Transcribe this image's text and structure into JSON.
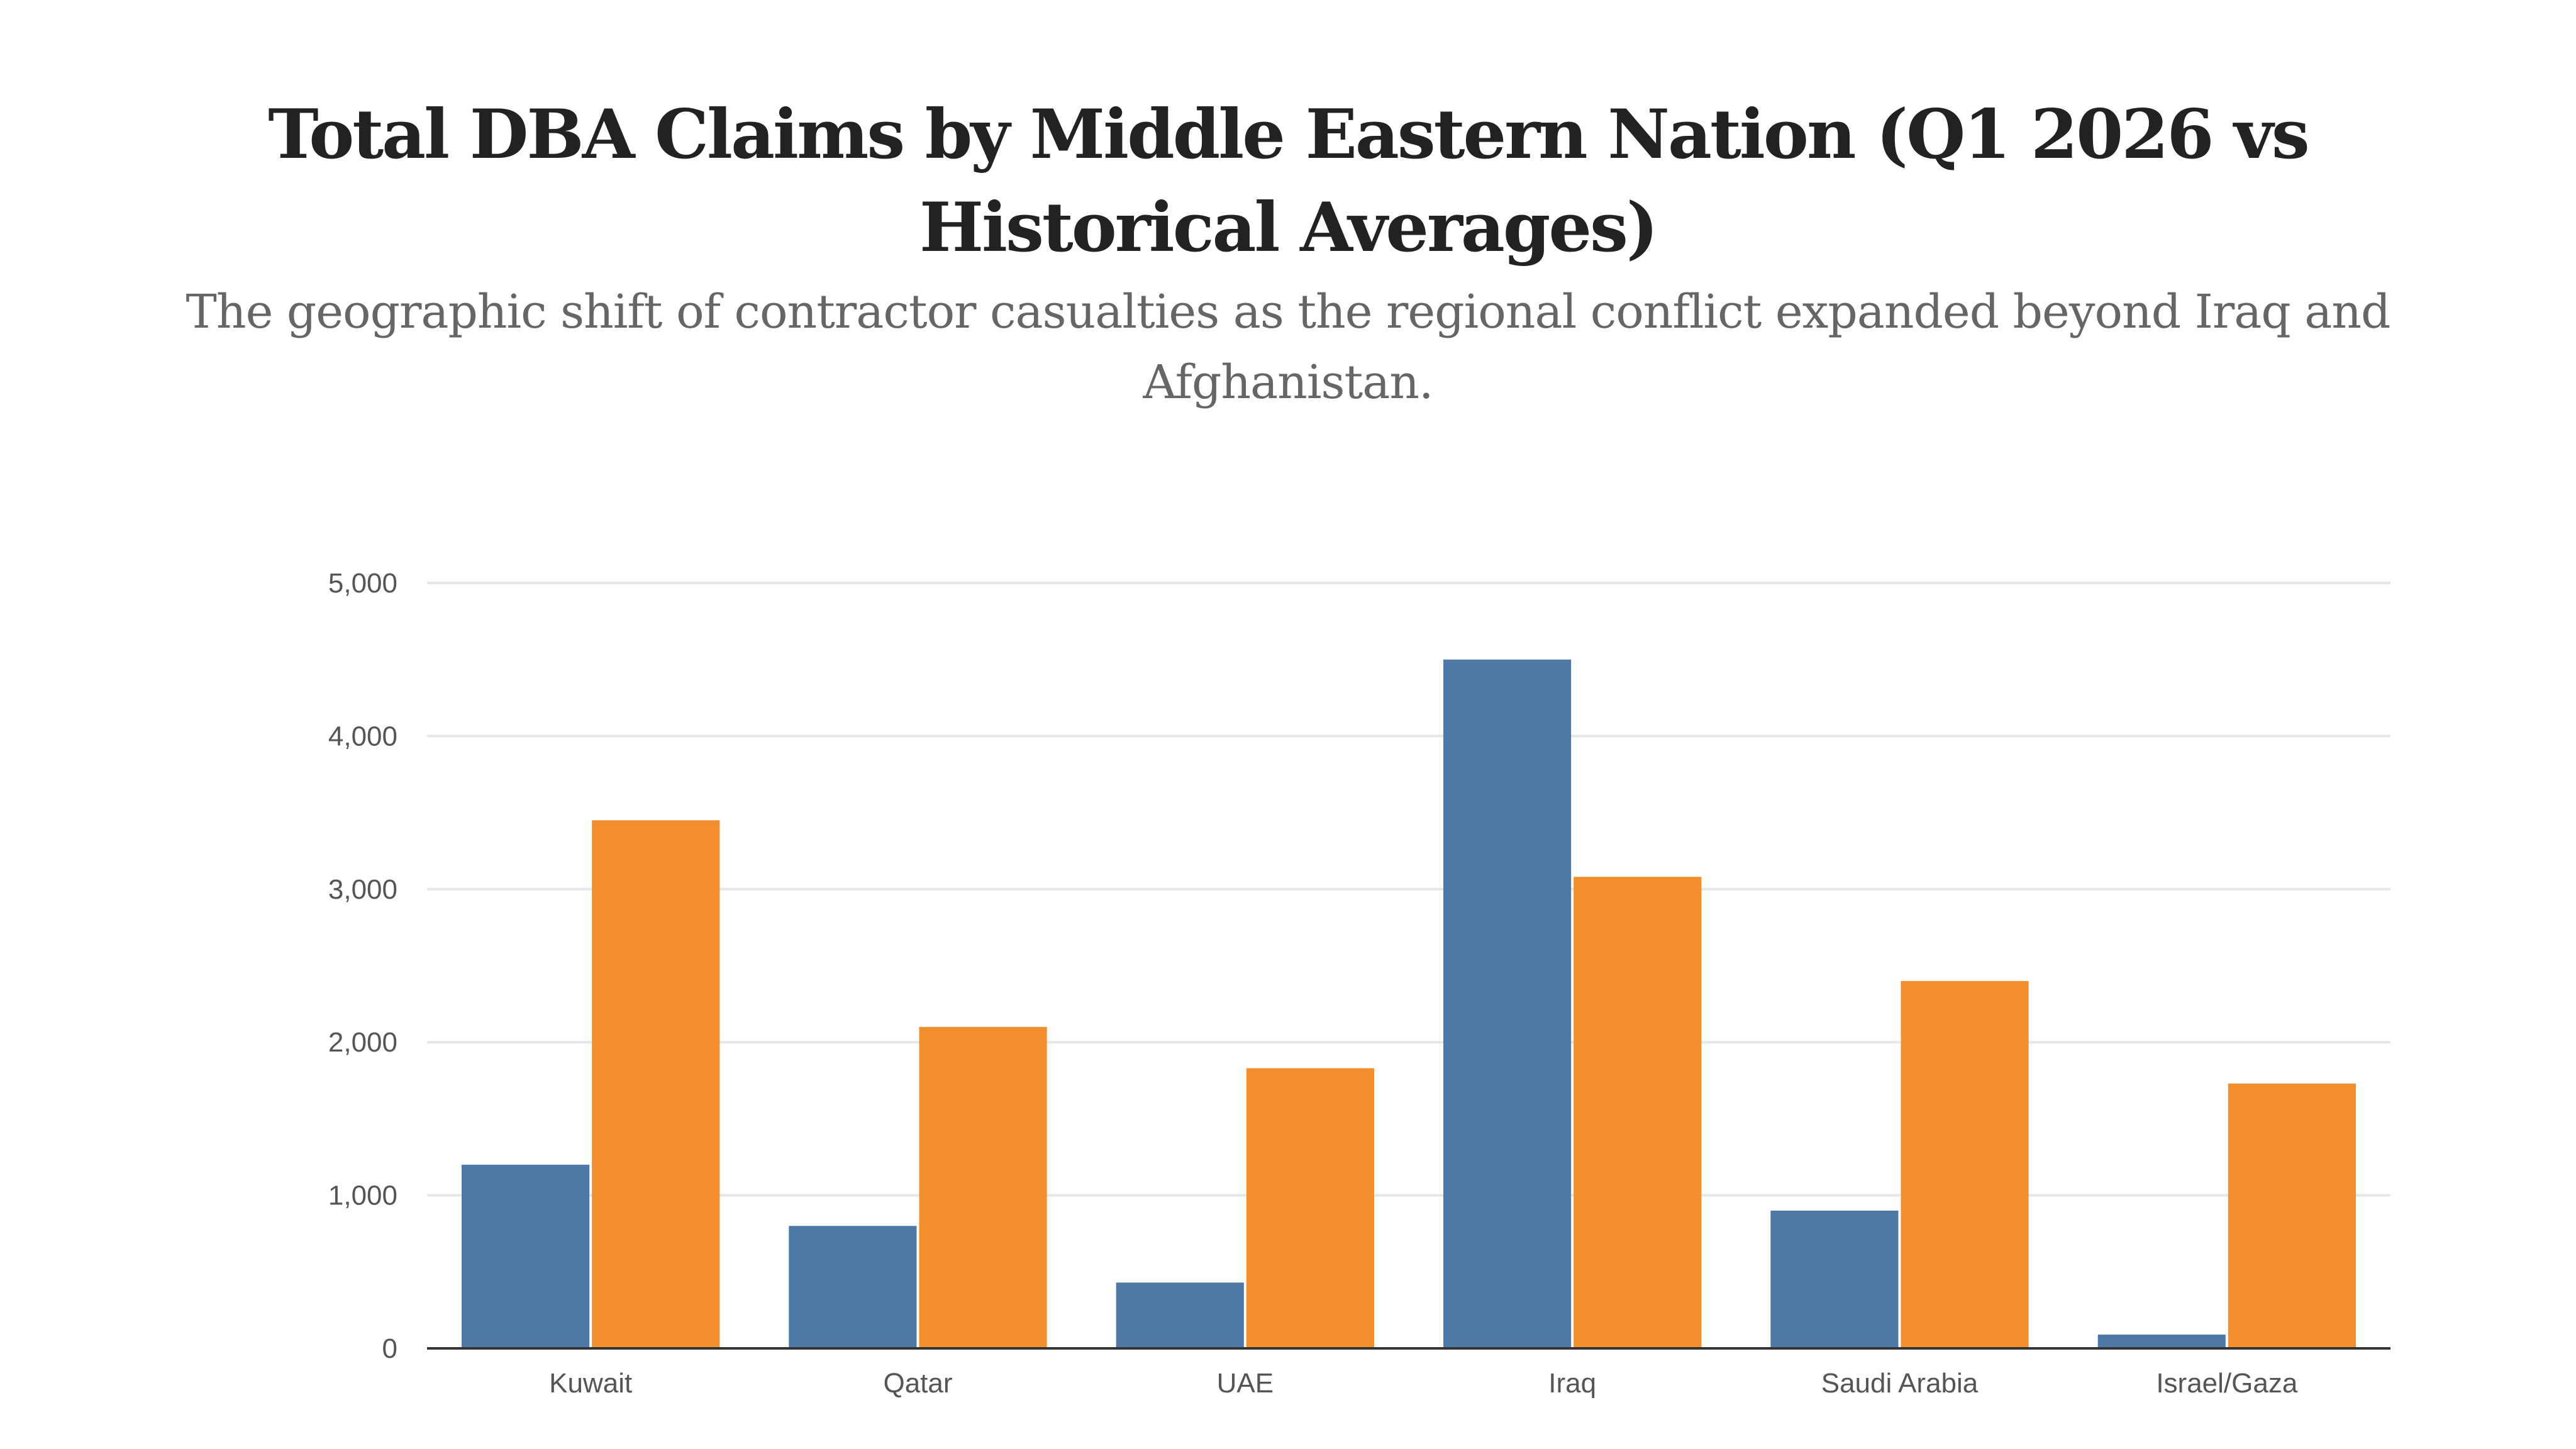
{
  "chart_data": {
    "type": "bar",
    "title": "Total DBA Claims by Middle Eastern Nation (Q1 2026 vs Historical Averages)",
    "subtitle": "The geographic shift of contractor casualties as the regional conflict expanded beyond Iraq and Afghanistan.",
    "categories": [
      "Kuwait",
      "Qatar",
      "UAE",
      "Iraq",
      "Saudi Arabia",
      "Israel/Gaza"
    ],
    "series": [
      {
        "name": "",
        "color": "#4e79a7",
        "values": [
          1200,
          800,
          430,
          4500,
          900,
          90
        ]
      },
      {
        "name": "",
        "color": "#f28e2b",
        "values": [
          3450,
          2100,
          1830,
          3080,
          2400,
          1730
        ]
      }
    ],
    "xlabel": "",
    "ylabel": "",
    "ylim": [
      0,
      5000
    ],
    "yticks": [
      0,
      1000,
      2000,
      3000,
      4000,
      5000
    ],
    "ytick_labels": [
      "0",
      "1,000",
      "2,000",
      "3,000",
      "4,000",
      "5,000"
    ],
    "grid": true,
    "legend": "none"
  }
}
